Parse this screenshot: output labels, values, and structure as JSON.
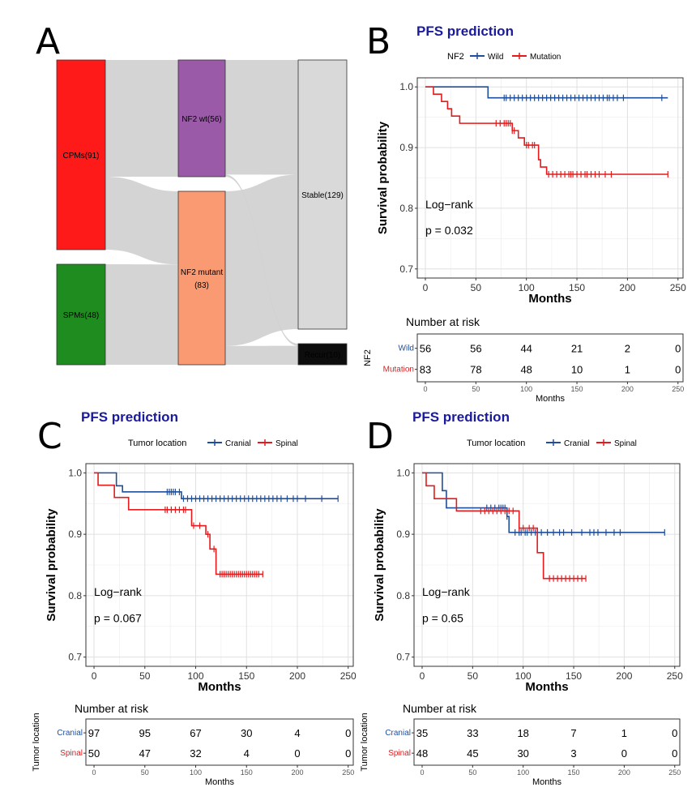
{
  "panels": {
    "A": {
      "letter": "A"
    },
    "B": {
      "letter": "B"
    },
    "C": {
      "letter": "C"
    },
    "D": {
      "letter": "D"
    }
  },
  "colors": {
    "wild": "#1f4e9a",
    "mutation": "#e41a1c",
    "cpm": "#ff1a1a",
    "spm": "#1f8c1f",
    "nf2wt": "#9b5aa8",
    "nf2mut": "#f99a72",
    "stable": "#d9d9d9",
    "recur": "#0d0d0d",
    "flow": "#cfcfcf"
  },
  "chart_data": [
    {
      "type": "sankey",
      "panel": "A",
      "nodes": [
        {
          "id": "cpm",
          "label": "CPMs(91)",
          "value": 91,
          "column": 0
        },
        {
          "id": "spm",
          "label": "SPMs(48)",
          "value": 48,
          "column": 0
        },
        {
          "id": "wt",
          "label": "NF2 wt(56)",
          "value": 56,
          "column": 1
        },
        {
          "id": "mut",
          "label": "NF2 mutant",
          "label2": "(83)",
          "value": 83,
          "column": 1
        },
        {
          "id": "stable",
          "label": "Stable(129)",
          "value": 129,
          "column": 2
        },
        {
          "id": "recur",
          "label": "Recur(10)",
          "value": 10,
          "column": 2
        }
      ],
      "links": [
        {
          "source": "cpm",
          "target": "wt",
          "value": 56
        },
        {
          "source": "cpm",
          "target": "mut",
          "value": 35
        },
        {
          "source": "spm",
          "target": "mut",
          "value": 48
        },
        {
          "source": "wt",
          "target": "stable",
          "value": 55
        },
        {
          "source": "wt",
          "target": "recur",
          "value": 1
        },
        {
          "source": "mut",
          "target": "stable",
          "value": 74
        },
        {
          "source": "mut",
          "target": "recur",
          "value": 9
        }
      ]
    },
    {
      "type": "line",
      "subtype": "kaplan-meier",
      "panel": "B",
      "title": "PFS prediction",
      "legend_title": "NF2",
      "xlabel": "Months",
      "ylabel": "Survival probability",
      "xlim": [
        -8,
        255
      ],
      "ylim": [
        0.685,
        1.015
      ],
      "xticks": [
        0,
        50,
        100,
        150,
        200,
        250
      ],
      "yticks": [
        0.7,
        0.8,
        0.9,
        1.0
      ],
      "yticklabels": [
        "0.7",
        "0.8",
        "0.9",
        "1.0"
      ],
      "annotation": {
        "text1": "Log−rank",
        "text2": "p = 0.032"
      },
      "series": [
        {
          "name": "Wild",
          "colorKey": "wild",
          "steps": [
            [
              0,
              1.0
            ],
            [
              62,
              0.982
            ],
            [
              240,
              0.982
            ]
          ],
          "censor": [
            78,
            80,
            84,
            88,
            92,
            96,
            100,
            104,
            108,
            112,
            116,
            120,
            124,
            128,
            132,
            136,
            140,
            144,
            148,
            152,
            156,
            160,
            164,
            168,
            172,
            176,
            180,
            182,
            186,
            190,
            196,
            234
          ]
        },
        {
          "name": "Mutation",
          "colorKey": "mutation",
          "steps": [
            [
              0,
              1.0
            ],
            [
              8,
              0.988
            ],
            [
              16,
              0.976
            ],
            [
              22,
              0.964
            ],
            [
              26,
              0.952
            ],
            [
              34,
              0.94
            ],
            [
              86,
              0.928
            ],
            [
              92,
              0.916
            ],
            [
              98,
              0.904
            ],
            [
              112,
              0.88
            ],
            [
              114,
              0.868
            ],
            [
              120,
              0.856
            ],
            [
              240,
              0.856
            ]
          ],
          "censor": [
            70,
            74,
            78,
            80,
            82,
            84,
            86,
            88,
            100,
            102,
            106,
            108,
            122,
            126,
            130,
            134,
            138,
            142,
            144,
            146,
            150,
            154,
            158,
            160,
            164,
            168,
            172,
            178,
            184,
            240
          ]
        }
      ],
      "risk_table": {
        "title": "Number at risk",
        "strata_title": "NF2",
        "xlabel": "Months",
        "times": [
          0,
          50,
          100,
          150,
          200,
          250
        ],
        "rows": [
          {
            "name": "Wild",
            "colorKey": "wild",
            "values": [
              "56",
              "56",
              "44",
              "21",
              "2",
              "0"
            ]
          },
          {
            "name": "Mutation",
            "colorKey": "mutation",
            "values": [
              "83",
              "78",
              "48",
              "10",
              "1",
              "0"
            ]
          }
        ]
      }
    },
    {
      "type": "line",
      "subtype": "kaplan-meier",
      "panel": "C",
      "title": "PFS prediction",
      "legend_title": "Tumor location",
      "xlabel": "Months",
      "ylabel": "Survival probability",
      "xlim": [
        -8,
        255
      ],
      "ylim": [
        0.685,
        1.015
      ],
      "xticks": [
        0,
        50,
        100,
        150,
        200,
        250
      ],
      "yticks": [
        0.7,
        0.8,
        0.9,
        1.0
      ],
      "yticklabels": [
        "0.7",
        "0.8",
        "0.9",
        "1.0"
      ],
      "annotation": {
        "text1": "Log−rank",
        "text2": "p = 0.067"
      },
      "series": [
        {
          "name": "Cranial",
          "colorKey": "wild",
          "steps": [
            [
              0,
              1.0
            ],
            [
              22,
              0.979
            ],
            [
              28,
              0.969
            ],
            [
              36,
              0.969
            ],
            [
              48,
              0.969
            ],
            [
              86,
              0.958
            ],
            [
              240,
              0.958
            ]
          ],
          "censor": [
            72,
            74,
            76,
            78,
            80,
            84,
            88,
            92,
            96,
            100,
            104,
            108,
            112,
            116,
            120,
            124,
            128,
            132,
            136,
            140,
            144,
            148,
            152,
            156,
            160,
            164,
            168,
            172,
            176,
            180,
            184,
            190,
            196,
            200,
            208,
            224,
            240
          ]
        },
        {
          "name": "Spinal",
          "colorKey": "mutation",
          "steps": [
            [
              0,
              1.0
            ],
            [
              4,
              0.98
            ],
            [
              20,
              0.96
            ],
            [
              34,
              0.94
            ],
            [
              96,
              0.914
            ],
            [
              110,
              0.9
            ],
            [
              114,
              0.876
            ],
            [
              120,
              0.835
            ],
            [
              166,
              0.835
            ]
          ],
          "censor": [
            70,
            72,
            76,
            80,
            84,
            88,
            90,
            98,
            104,
            112,
            118,
            124,
            126,
            128,
            130,
            132,
            134,
            136,
            138,
            140,
            142,
            144,
            146,
            148,
            150,
            152,
            154,
            156,
            158,
            160,
            162,
            166
          ]
        }
      ],
      "risk_table": {
        "title": "Number at risk",
        "strata_title": "Tumor location",
        "xlabel": "Months",
        "times": [
          0,
          50,
          100,
          150,
          200,
          250
        ],
        "rows": [
          {
            "name": "Cranial",
            "colorKey": "wild",
            "values": [
              "97",
              "95",
              "67",
              "30",
              "4",
              "0"
            ]
          },
          {
            "name": "Spinal",
            "colorKey": "mutation",
            "values": [
              "50",
              "47",
              "32",
              "4",
              "0",
              "0"
            ]
          }
        ]
      }
    },
    {
      "type": "line",
      "subtype": "kaplan-meier",
      "panel": "D",
      "title": "PFS prediction",
      "legend_title": "Tumor location",
      "xlabel": "Months",
      "ylabel": "Survival probability",
      "xlim": [
        -8,
        255
      ],
      "ylim": [
        0.685,
        1.015
      ],
      "xticks": [
        0,
        50,
        100,
        150,
        200,
        250
      ],
      "yticks": [
        0.7,
        0.8,
        0.9,
        1.0
      ],
      "yticklabels": [
        "0.7",
        "0.8",
        "0.9",
        "1.0"
      ],
      "annotation": {
        "text1": "Log−rank",
        "text2": "p = 0.65"
      },
      "series": [
        {
          "name": "Cranial",
          "colorKey": "wild",
          "steps": [
            [
              0,
              1.0
            ],
            [
              20,
              0.971
            ],
            [
              24,
              0.943
            ],
            [
              84,
              0.929
            ],
            [
              86,
              0.903
            ],
            [
              240,
              0.903
            ]
          ],
          "censor": [
            64,
            68,
            72,
            76,
            78,
            80,
            82,
            84,
            92,
            96,
            98,
            102,
            104,
            108,
            112,
            118,
            124,
            130,
            136,
            140,
            148,
            158,
            166,
            170,
            174,
            182,
            190,
            196,
            240
          ]
        },
        {
          "name": "Spinal",
          "colorKey": "mutation",
          "steps": [
            [
              0,
              1.0
            ],
            [
              4,
              0.979
            ],
            [
              12,
              0.958
            ],
            [
              20,
              0.958
            ],
            [
              34,
              0.938
            ],
            [
              96,
              0.91
            ],
            [
              114,
              0.87
            ],
            [
              120,
              0.828
            ],
            [
              162,
              0.828
            ]
          ],
          "censor": [
            58,
            62,
            66,
            70,
            74,
            78,
            82,
            86,
            90,
            96,
            100,
            106,
            110,
            126,
            130,
            134,
            138,
            142,
            146,
            150,
            154,
            158,
            162
          ]
        }
      ],
      "risk_table": {
        "title": "Number at risk",
        "strata_title": "Tumor location",
        "xlabel": "Months",
        "times": [
          0,
          50,
          100,
          150,
          200,
          250
        ],
        "rows": [
          {
            "name": "Cranial",
            "colorKey": "wild",
            "values": [
              "35",
              "33",
              "18",
              "7",
              "1",
              "0"
            ]
          },
          {
            "name": "Spinal",
            "colorKey": "mutation",
            "values": [
              "48",
              "45",
              "30",
              "3",
              "0",
              "0"
            ]
          }
        ]
      }
    }
  ]
}
